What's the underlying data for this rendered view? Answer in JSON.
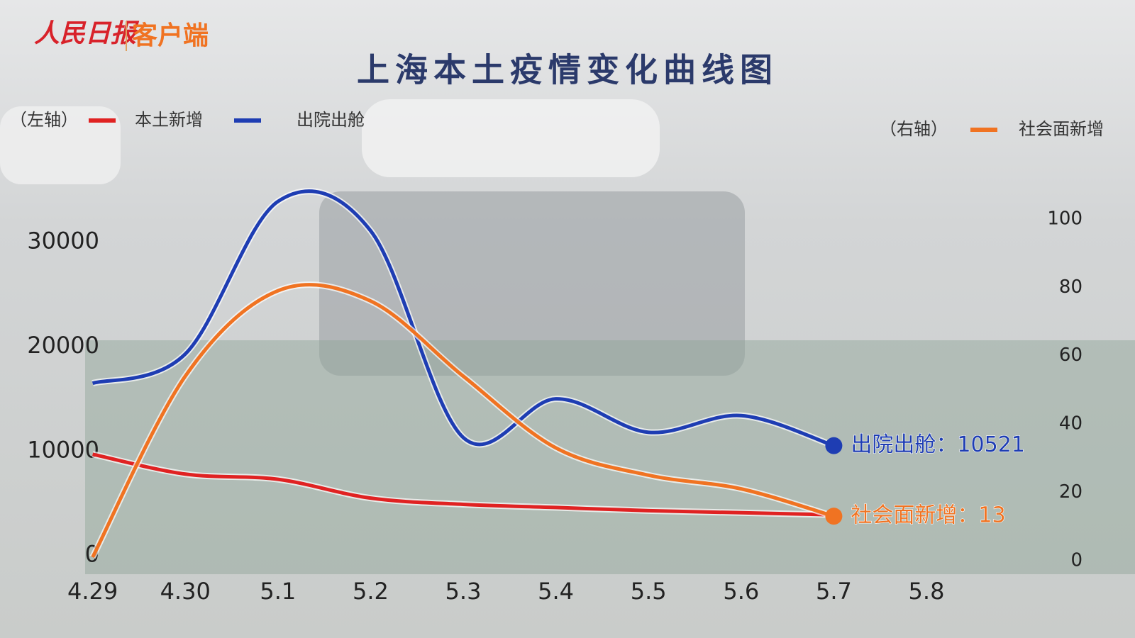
{
  "brand": {
    "name": "人民日报",
    "client": "客户端"
  },
  "chart_data": {
    "type": "line",
    "title": "上海本土疫情变化曲线图",
    "left_axis_label": "（左轴）",
    "right_axis_label": "（右轴）",
    "categories": [
      "4.29",
      "4.30",
      "5.1",
      "5.2",
      "5.3",
      "5.4",
      "5.5",
      "5.6",
      "5.7",
      "5.8"
    ],
    "series": [
      {
        "name": "本土新增",
        "color": "#e02222",
        "axis": "y",
        "values": [
          9700,
          7800,
          7300,
          5500,
          4900,
          4600,
          4300,
          4100,
          3900,
          null
        ]
      },
      {
        "name": "出院出舱",
        "color": "#1e3db3",
        "axis": "y",
        "values": [
          16500,
          19300,
          33900,
          31100,
          11300,
          15000,
          11800,
          13400,
          10521,
          null
        ],
        "end_label": "出院出舱：10521"
      },
      {
        "name": "社会面新增",
        "color": "#f07322",
        "axis": "y2",
        "values": [
          1,
          54,
          79,
          76,
          54,
          33,
          25,
          21,
          13,
          null
        ],
        "end_label": "社会面新增：13"
      }
    ],
    "ylim": [
      0,
      35000
    ],
    "yticks": [
      0,
      10000,
      20000,
      30000
    ],
    "y2lim": [
      0,
      100
    ],
    "y2ticks": [
      0,
      20,
      40,
      60,
      80,
      100
    ],
    "grid": false
  }
}
